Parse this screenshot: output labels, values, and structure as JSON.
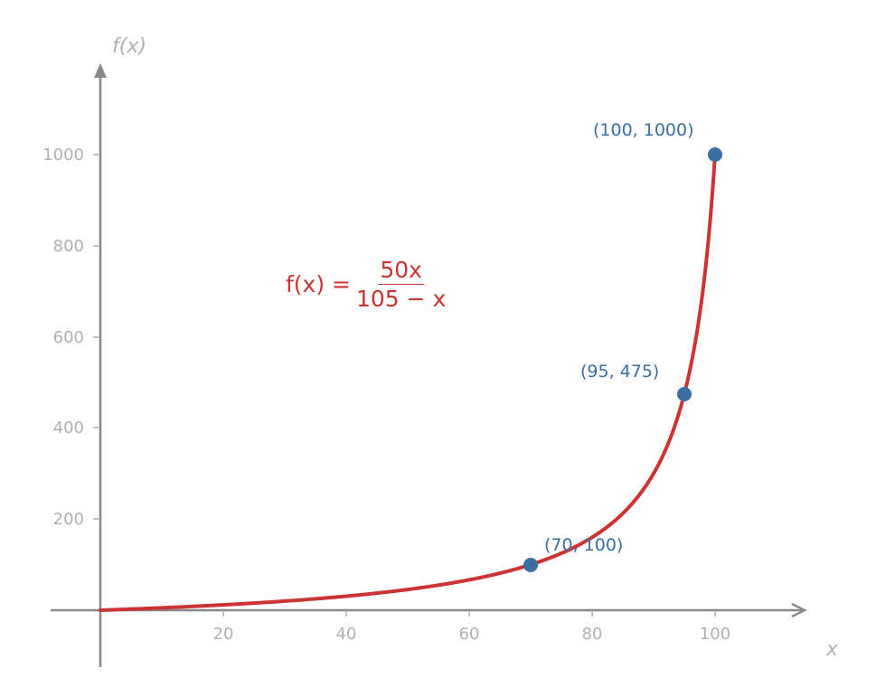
{
  "chart_data": {
    "type": "line",
    "title": "",
    "function": "f(x) = 50x / (105 - x)",
    "xlabel": "x",
    "ylabel": "f(x)",
    "xlim": [
      -8,
      115
    ],
    "ylim": [
      -120,
      1180
    ],
    "xticks": [
      20,
      40,
      60,
      80,
      100
    ],
    "yticks": [
      200,
      400,
      600,
      800,
      1000
    ],
    "grid": false,
    "series": [
      {
        "name": "f(x) = 50x/(105 - x)",
        "color": "#cc3333",
        "x": [
          0,
          10,
          20,
          30,
          40,
          50,
          60,
          70,
          75,
          80,
          85,
          90,
          95,
          98,
          100
        ],
        "y": [
          0,
          5.26,
          11.76,
          20,
          30.77,
          45.45,
          66.67,
          100,
          125,
          160,
          212.5,
          300,
          475,
          700,
          1000
        ]
      }
    ],
    "points": [
      {
        "x": 70,
        "y": 100,
        "label": "(70, 100)"
      },
      {
        "x": 95,
        "y": 475,
        "label": "(95, 475)"
      },
      {
        "x": 100,
        "y": 1000,
        "label": "(100, 1000)"
      }
    ],
    "annotations": [
      {
        "text": "f(x) = 50x / (105 − x)",
        "color": "#cc3333"
      }
    ]
  },
  "labels": {
    "xaxis": "x",
    "yaxis": "f(x)",
    "xticks": [
      "20",
      "40",
      "60",
      "80",
      "100"
    ],
    "yticks": [
      "200",
      "400",
      "600",
      "800",
      "1000"
    ],
    "p1": "(70, 100)",
    "p2": "(95, 475)",
    "p3": "(100, 1000)",
    "formula_lhs": "f(x) =",
    "formula_num": "50x",
    "formula_den": "105 − x"
  },
  "colors": {
    "curve": "#cc3333",
    "points": "#3a6ea5",
    "axis": "#888888",
    "tick_text": "#b0b0b0"
  }
}
